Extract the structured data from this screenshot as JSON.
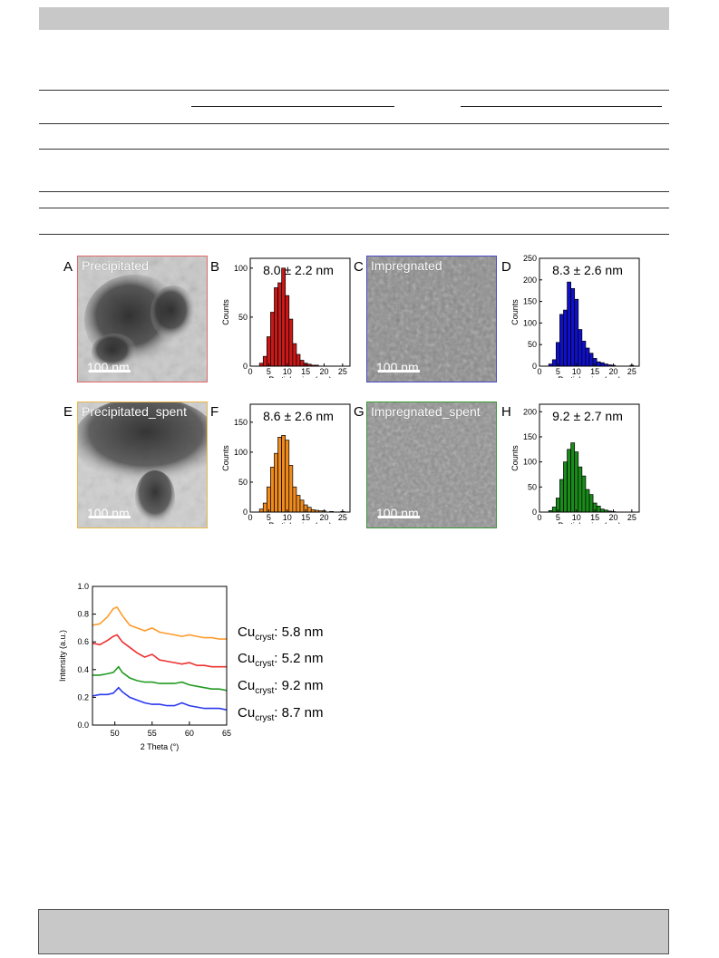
{
  "figure": {
    "panels": [
      {
        "letter": "A",
        "kind": "tem",
        "label": "Precipitated",
        "scale_bar": "100 nm",
        "border_color": "#e06a6a"
      },
      {
        "letter": "B",
        "kind": "hist",
        "annotation": "8.0 ± 2.2 nm",
        "color": "#c81818"
      },
      {
        "letter": "C",
        "kind": "tem",
        "label": "Impregnated",
        "scale_bar": "100 nm",
        "border_color": "#4a4acb"
      },
      {
        "letter": "D",
        "kind": "hist",
        "annotation": "8.3 ± 2.6 nm",
        "color": "#1010c8"
      },
      {
        "letter": "E",
        "kind": "tem",
        "label": "Precipitated_spent",
        "scale_bar": "100 nm",
        "border_color": "#e8b84a"
      },
      {
        "letter": "F",
        "kind": "hist",
        "annotation": "8.6 ± 2.6 nm",
        "color": "#ee8a1e"
      },
      {
        "letter": "G",
        "kind": "tem",
        "label": "Impregnated_spent",
        "scale_bar": "100 nm",
        "border_color": "#3a9a3a"
      },
      {
        "letter": "H",
        "kind": "hist",
        "annotation": "9.2 ± 2.7 nm",
        "color": "#1a8a1a"
      }
    ],
    "xrd_labels": [
      {
        "prefix": "Cu",
        "sub": "cryst",
        "value": ": 5.8 nm"
      },
      {
        "prefix": "Cu",
        "sub": "cryst",
        "value": ": 5.2 nm"
      },
      {
        "prefix": "Cu",
        "sub": "cryst",
        "value": ": 9.2 nm"
      },
      {
        "prefix": "Cu",
        "sub": "cryst",
        "value": ": 8.7 nm"
      }
    ]
  },
  "chart_data": [
    {
      "type": "bar",
      "panel": "B",
      "xlabel": "Particle size (nm)",
      "ylabel": "Counts",
      "xlim": [
        0,
        27
      ],
      "ylim": [
        0,
        110
      ],
      "xticks": [
        0,
        5,
        10,
        15,
        20,
        25
      ],
      "yticks": [
        0,
        50,
        100
      ],
      "bin_width": 1,
      "bins": [
        3,
        4,
        5,
        6,
        7,
        8,
        9,
        10,
        11,
        12,
        13,
        14,
        15,
        16,
        17,
        18
      ],
      "values": [
        3,
        10,
        30,
        55,
        80,
        85,
        100,
        72,
        48,
        23,
        12,
        6,
        3,
        2,
        1,
        1
      ]
    },
    {
      "type": "bar",
      "panel": "D",
      "xlabel": "Particle size (nm)",
      "ylabel": "Counts",
      "xlim": [
        0,
        27
      ],
      "ylim": [
        0,
        250
      ],
      "xticks": [
        0,
        5,
        10,
        15,
        20,
        25
      ],
      "yticks": [
        0,
        50,
        100,
        150,
        200,
        250
      ],
      "bin_width": 1,
      "bins": [
        3,
        4,
        5,
        6,
        7,
        8,
        9,
        10,
        11,
        12,
        13,
        14,
        15,
        16,
        17,
        18,
        19,
        20,
        25
      ],
      "values": [
        5,
        15,
        55,
        120,
        130,
        195,
        180,
        155,
        85,
        58,
        42,
        30,
        18,
        10,
        8,
        5,
        3,
        2,
        2
      ]
    },
    {
      "type": "bar",
      "panel": "F",
      "xlabel": "Particle size (nm)",
      "ylabel": "Counts",
      "xlim": [
        0,
        27
      ],
      "ylim": [
        0,
        180
      ],
      "xticks": [
        0,
        5,
        10,
        15,
        20,
        25
      ],
      "yticks": [
        0,
        50,
        100,
        150
      ],
      "bin_width": 1,
      "bins": [
        3,
        4,
        5,
        6,
        7,
        8,
        9,
        10,
        11,
        12,
        13,
        14,
        15,
        16,
        17,
        18,
        19,
        20,
        22,
        25
      ],
      "values": [
        5,
        15,
        42,
        75,
        98,
        125,
        128,
        120,
        78,
        42,
        28,
        20,
        12,
        8,
        4,
        3,
        2,
        2,
        1,
        1
      ]
    },
    {
      "type": "bar",
      "panel": "H",
      "xlabel": "Particle size (nm)",
      "ylabel": "Counts",
      "xlim": [
        0,
        27
      ],
      "ylim": [
        0,
        215
      ],
      "xticks": [
        0,
        5,
        10,
        15,
        20,
        25
      ],
      "yticks": [
        0,
        50,
        100,
        150,
        200
      ],
      "bin_width": 1,
      "bins": [
        3,
        4,
        5,
        6,
        7,
        8,
        9,
        10,
        11,
        12,
        13,
        14,
        15,
        16,
        17,
        18,
        19,
        20
      ],
      "values": [
        3,
        10,
        28,
        65,
        100,
        125,
        138,
        120,
        90,
        72,
        45,
        35,
        18,
        12,
        6,
        4,
        2,
        1
      ]
    },
    {
      "type": "line",
      "panel": "xrd",
      "xlabel": "2 Theta (°)",
      "ylabel": "Intensity (a.u.)",
      "xlim": [
        47,
        65
      ],
      "ylim": [
        0,
        1.0
      ],
      "xticks": [
        50,
        55,
        60,
        65
      ],
      "yticks": [
        0.0,
        0.2,
        0.4,
        0.6,
        0.8,
        1.0
      ],
      "ytick_labels": [
        "0.0",
        "0.2",
        "0.4",
        "0.6",
        "0.8",
        "1.0"
      ],
      "series": [
        {
          "color": "#ff9a2a",
          "x": [
            47,
            48,
            49,
            49.8,
            50.3,
            51,
            52,
            53,
            54,
            55,
            56,
            57,
            58,
            59,
            60,
            61,
            62,
            63,
            64,
            65
          ],
          "y": [
            0.72,
            0.73,
            0.78,
            0.84,
            0.85,
            0.79,
            0.72,
            0.7,
            0.68,
            0.7,
            0.67,
            0.66,
            0.65,
            0.64,
            0.65,
            0.64,
            0.63,
            0.63,
            0.62,
            0.62
          ]
        },
        {
          "color": "#ee3030",
          "x": [
            47,
            48,
            49,
            49.8,
            50.3,
            51,
            52,
            53,
            54,
            55,
            56,
            57,
            58,
            59,
            60,
            61,
            62,
            63,
            64,
            65
          ],
          "y": [
            0.59,
            0.58,
            0.61,
            0.64,
            0.65,
            0.6,
            0.56,
            0.52,
            0.49,
            0.51,
            0.47,
            0.46,
            0.45,
            0.44,
            0.45,
            0.43,
            0.43,
            0.42,
            0.42,
            0.42
          ]
        },
        {
          "color": "#229a22",
          "x": [
            47,
            48,
            49,
            49.8,
            50.5,
            51,
            52,
            53,
            54,
            55,
            56,
            57,
            58,
            59,
            60,
            61,
            62,
            63,
            64,
            65
          ],
          "y": [
            0.36,
            0.36,
            0.37,
            0.38,
            0.42,
            0.38,
            0.34,
            0.32,
            0.31,
            0.31,
            0.3,
            0.3,
            0.3,
            0.31,
            0.29,
            0.28,
            0.27,
            0.26,
            0.26,
            0.25
          ]
        },
        {
          "color": "#2a3aee",
          "x": [
            47,
            48,
            49,
            49.8,
            50.5,
            51,
            52,
            53,
            54,
            55,
            56,
            57,
            58,
            59,
            60,
            61,
            62,
            63,
            64,
            65
          ],
          "y": [
            0.21,
            0.22,
            0.22,
            0.23,
            0.27,
            0.24,
            0.2,
            0.18,
            0.16,
            0.15,
            0.15,
            0.14,
            0.14,
            0.16,
            0.14,
            0.13,
            0.12,
            0.12,
            0.12,
            0.11
          ]
        }
      ]
    }
  ]
}
